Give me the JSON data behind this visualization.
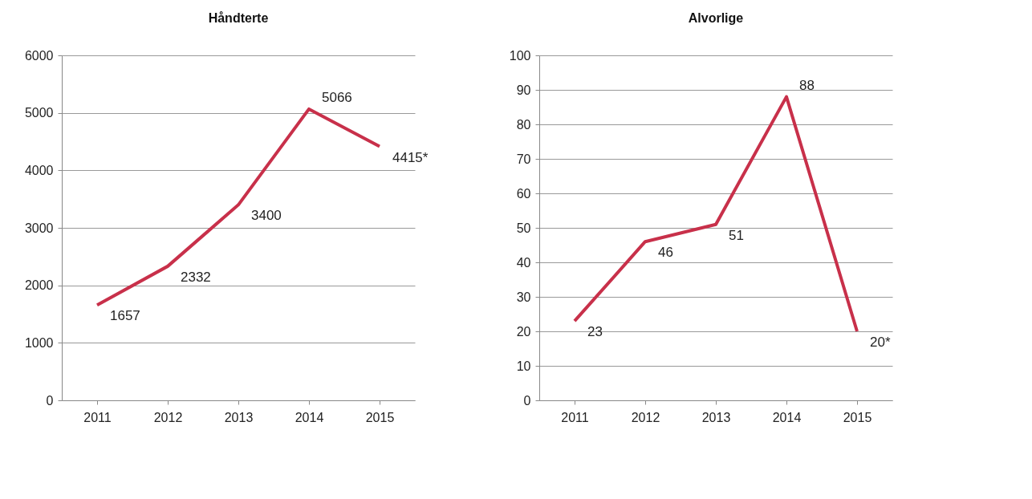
{
  "chart_data": [
    {
      "type": "line",
      "title": "Håndterte",
      "categories": [
        "2011",
        "2012",
        "2013",
        "2014",
        "2015"
      ],
      "series": [
        {
          "color": "#c8304a",
          "values": [
            1657,
            2332,
            3400,
            5066,
            4415
          ],
          "value_labels": [
            "1657",
            "2332",
            "3400",
            "5066",
            "4415*"
          ]
        }
      ],
      "ylim": [
        0,
        6000
      ],
      "yticks": [
        0,
        1000,
        2000,
        3000,
        4000,
        5000,
        6000
      ],
      "grid": "y",
      "marker": "none"
    },
    {
      "type": "line",
      "title": "Alvorlige",
      "categories": [
        "2011",
        "2012",
        "2013",
        "2014",
        "2015"
      ],
      "series": [
        {
          "color": "#c8304a",
          "values": [
            23,
            46,
            51,
            88,
            20
          ],
          "value_labels": [
            "23",
            "46",
            "51",
            "88",
            "20*"
          ]
        }
      ],
      "ylim": [
        0,
        100
      ],
      "yticks": [
        0,
        10,
        20,
        30,
        40,
        50,
        60,
        70,
        80,
        90,
        100
      ],
      "grid": "y",
      "marker": "none"
    }
  ]
}
